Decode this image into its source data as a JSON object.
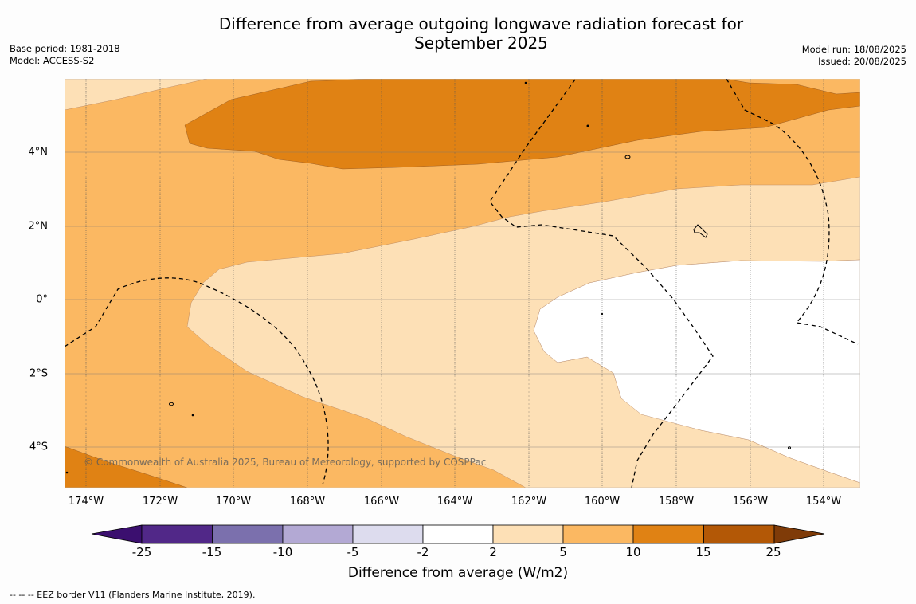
{
  "title_line1": "Difference from average outgoing longwave radiation forecast for",
  "title_line2": "September 2025",
  "base_period": "Base period: 1981-2018",
  "model": "Model: ACCESS-S2",
  "model_run": "Model run: 18/08/2025",
  "issued": "Issued: 20/08/2025",
  "copyright": "© Commonwealth of Australia 2025, Bureau of Meteorology, supported by COSPPac",
  "footer": "--  --  -- EEZ border V11 (Flanders Marine Institute, 2019).",
  "lat_labels": [
    "4°N",
    "2°N",
    "0°",
    "2°S",
    "4°S"
  ],
  "lon_labels": [
    "174°W",
    "172°W",
    "170°W",
    "168°W",
    "166°W",
    "164°W",
    "162°W",
    "160°W",
    "158°W",
    "156°W",
    "154°W"
  ],
  "colorbar": {
    "title": "Difference from average (W/m2)",
    "ticks": [
      "-25",
      "-15",
      "-10",
      "-5",
      "-2",
      "2",
      "5",
      "10",
      "15",
      "25"
    ],
    "colors": [
      "#4a1a7c",
      "#512888",
      "#7b70ad",
      "#b3a9d4",
      "#dddcee",
      "#ffffff",
      "#fde0b6",
      "#fbb862",
      "#e08214",
      "#b35806",
      "#7f3b08"
    ]
  },
  "map_colors": {
    "band_2_5": "#fde0b6",
    "band_5_10": "#fbb862",
    "band_10_15": "#e08214",
    "band_neutral": "#ffffff"
  }
}
